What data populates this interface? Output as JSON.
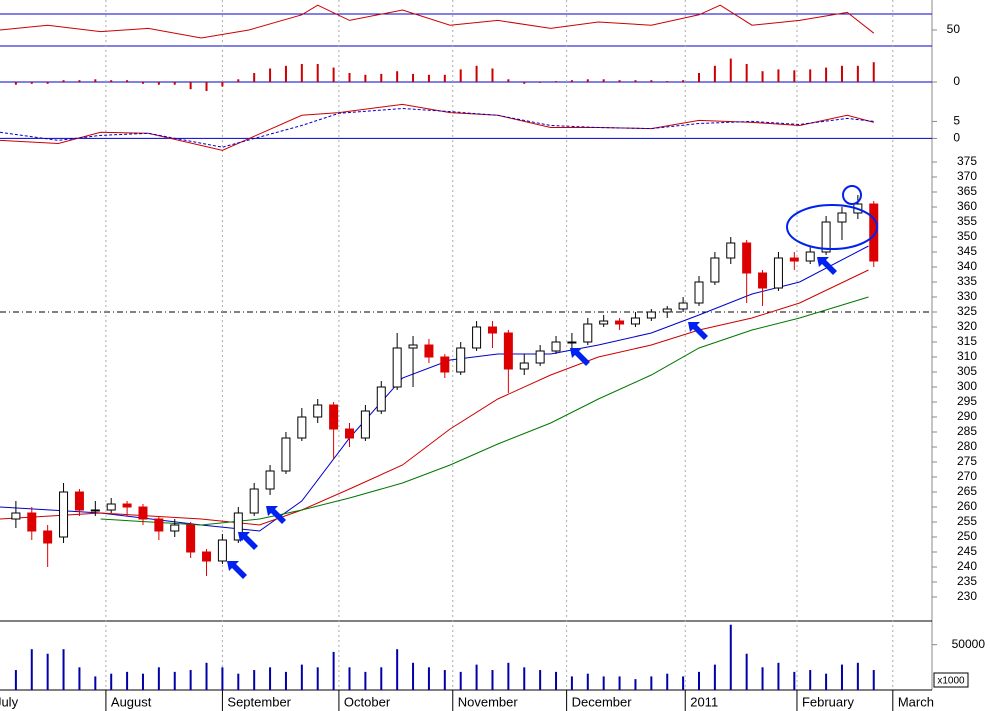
{
  "chart_data": [
    {
      "type": "line",
      "xlim": [
        -2,
        174
      ],
      "ylim": [
        30,
        85
      ],
      "yticks": [
        50
      ],
      "hlines": [
        70,
        30
      ],
      "series": [
        {
          "color": "#cc0000",
          "x": [
            -2,
            7,
            17,
            26,
            36,
            45,
            55,
            58,
            64,
            74,
            83,
            92,
            102,
            111,
            121,
            130,
            134,
            140,
            149,
            158,
            163
          ],
          "values": [
            50,
            56,
            48,
            52,
            40,
            50,
            69,
            81,
            62,
            75,
            56,
            62,
            52,
            60,
            56,
            69,
            81,
            56,
            62,
            72,
            46
          ]
        }
      ]
    },
    {
      "type": "bar",
      "xlim": [
        -2,
        174
      ],
      "ylim": [
        -20,
        40
      ],
      "yticks": [
        0
      ],
      "color": "#cc0000",
      "x": [
        1,
        4,
        7,
        10,
        13,
        16,
        19,
        22,
        25,
        28,
        31,
        34,
        37,
        40,
        43,
        46,
        49,
        52,
        55,
        58,
        61,
        64,
        67,
        70,
        73,
        76,
        79,
        82,
        85,
        88,
        91,
        94,
        97,
        100,
        103,
        106,
        109,
        112,
        115,
        118,
        121,
        124,
        127,
        130,
        133,
        136,
        139,
        142,
        145,
        148,
        151,
        154,
        157,
        160,
        163
      ],
      "values": [
        -3,
        -2,
        -2,
        2,
        2,
        3,
        2,
        2,
        -2,
        -3,
        -3,
        -8,
        -10,
        -5,
        3,
        10,
        15,
        18,
        20,
        20,
        16,
        10,
        8,
        9,
        12,
        9,
        8,
        8,
        14,
        18,
        15,
        3,
        -2,
        -1,
        1,
        2,
        3,
        3,
        2,
        2,
        2,
        1,
        2,
        10,
        18,
        26,
        20,
        12,
        14,
        13,
        14,
        16,
        18,
        18,
        22
      ]
    },
    {
      "type": "line",
      "xlim": [
        -2,
        174
      ],
      "ylim": [
        -4,
        11.6
      ],
      "yticks": [
        0,
        5
      ],
      "series": [
        {
          "color": "#cc0000",
          "x": [
            -2,
            9,
            17,
            26,
            40,
            55,
            62,
            74,
            83,
            92,
            102,
            111,
            121,
            130,
            140,
            149,
            158,
            163
          ],
          "values": [
            -0.6,
            -1.5,
            1.8,
            1.5,
            -3.5,
            6.8,
            7.6,
            10,
            7.6,
            6.8,
            3.2,
            3.2,
            2.9,
            5.3,
            4.7,
            3.8,
            6.8,
            4.7
          ]
        },
        {
          "color": "#0000cc",
          "dash": true,
          "x": [
            -2,
            9,
            17,
            26,
            40,
            55,
            62,
            74,
            83,
            92,
            102,
            111,
            121,
            130,
            140,
            149,
            158,
            163
          ],
          "values": [
            1.8,
            -0.6,
            0.9,
            1.5,
            -2.6,
            3.8,
            7.4,
            8.8,
            7.9,
            6.8,
            3.8,
            3.2,
            2.9,
            4.4,
            5,
            4.1,
            5.9,
            5
          ]
        }
      ]
    },
    {
      "type": "candlestick",
      "xlim": [
        -2,
        174
      ],
      "ylim": [
        222,
        379
      ],
      "yticks": [
        230,
        235,
        240,
        245,
        250,
        255,
        260,
        265,
        270,
        275,
        280,
        285,
        290,
        295,
        300,
        305,
        310,
        315,
        320,
        325,
        330,
        335,
        340,
        345,
        350,
        355,
        360,
        365,
        370,
        375
      ],
      "hline": 325,
      "up_color": "#ffffff",
      "down_color": "#dd0000",
      "x": [
        1,
        4,
        7,
        10,
        13,
        16,
        19,
        22,
        25,
        28,
        31,
        34,
        37,
        40,
        43,
        46,
        49,
        52,
        55,
        58,
        61,
        64,
        67,
        70,
        73,
        76,
        79,
        82,
        85,
        88,
        91,
        94,
        97,
        100,
        103,
        106,
        109,
        112,
        115,
        118,
        121,
        124,
        127,
        130,
        133,
        136,
        139,
        142,
        145,
        148,
        151,
        154,
        157,
        160,
        163
      ],
      "ohlc": [
        [
          256,
          262,
          253,
          258
        ],
        [
          258,
          260,
          249,
          252
        ],
        [
          252,
          254,
          240,
          248
        ],
        [
          250,
          268,
          248,
          265
        ],
        [
          265,
          266,
          257,
          259
        ],
        [
          259,
          262,
          257,
          259
        ],
        [
          259,
          263,
          258,
          261
        ],
        [
          261,
          262,
          257,
          260
        ],
        [
          260,
          261,
          254,
          256
        ],
        [
          256,
          257,
          249,
          252
        ],
        [
          252,
          256,
          250,
          254
        ],
        [
          254,
          255,
          243,
          245
        ],
        [
          245,
          246,
          237,
          242
        ],
        [
          242,
          251,
          241,
          249
        ],
        [
          249,
          260,
          248,
          258
        ],
        [
          258,
          268,
          257,
          266
        ],
        [
          266,
          274,
          264,
          272
        ],
        [
          272,
          285,
          271,
          283
        ],
        [
          283,
          293,
          282,
          290
        ],
        [
          290,
          296,
          288,
          294
        ],
        [
          294,
          295,
          276,
          286
        ],
        [
          286,
          288,
          280,
          283
        ],
        [
          283,
          294,
          282,
          292
        ],
        [
          292,
          302,
          291,
          300
        ],
        [
          300,
          318,
          299,
          313
        ],
        [
          313,
          317,
          300,
          314
        ],
        [
          314,
          316,
          308,
          310
        ],
        [
          310,
          311,
          303,
          305
        ],
        [
          305,
          315,
          304,
          313
        ],
        [
          313,
          322,
          312,
          320
        ],
        [
          320,
          322,
          313,
          318
        ],
        [
          318,
          319,
          298,
          306
        ],
        [
          306,
          311,
          304,
          308
        ],
        [
          308,
          314,
          307,
          312
        ],
        [
          312,
          317,
          311,
          315
        ],
        [
          315,
          318,
          313,
          315
        ],
        [
          315,
          323,
          314,
          321
        ],
        [
          321,
          324,
          320,
          322
        ],
        [
          322,
          323,
          319,
          321
        ],
        [
          321,
          325,
          320,
          323
        ],
        [
          323,
          326,
          322,
          325
        ],
        [
          325,
          327,
          323,
          326
        ],
        [
          326,
          330,
          325,
          328
        ],
        [
          328,
          337,
          327,
          335
        ],
        [
          335,
          345,
          334,
          343
        ],
        [
          343,
          350,
          341,
          348
        ],
        [
          348,
          349,
          328,
          338
        ],
        [
          338,
          339,
          327,
          333
        ],
        [
          333,
          345,
          332,
          343
        ],
        [
          343,
          345,
          339,
          342
        ],
        [
          342,
          347,
          341,
          345
        ],
        [
          345,
          357,
          344,
          355
        ],
        [
          355,
          360,
          349,
          358
        ],
        [
          358,
          364,
          356,
          361
        ],
        [
          361,
          362,
          340,
          342
        ]
      ],
      "series": [
        {
          "color": "#0000cc",
          "x": [
            -2,
            17,
            36,
            47,
            55,
            64,
            74,
            83,
            92,
            102,
            111,
            121,
            130,
            140,
            149,
            162
          ],
          "values": [
            260,
            258,
            254,
            252,
            262,
            283,
            303,
            309,
            311,
            311,
            314,
            318,
            324,
            331,
            335,
            347
          ]
        },
        {
          "color": "#cc0000",
          "x": [
            -2,
            17,
            36,
            47,
            55,
            64,
            74,
            83,
            92,
            102,
            111,
            121,
            130,
            140,
            149,
            162
          ],
          "values": [
            256,
            258,
            256,
            254,
            259,
            266,
            274,
            286,
            296,
            304,
            310,
            314,
            319,
            323,
            328,
            339
          ]
        },
        {
          "color": "#007700",
          "x": [
            -2,
            17,
            36,
            47,
            55,
            64,
            74,
            83,
            92,
            102,
            111,
            121,
            130,
            140,
            149,
            162
          ],
          "values": [
            null,
            256,
            254,
            256,
            259,
            263,
            268,
            274,
            281,
            288,
            296,
            304,
            313,
            319,
            323,
            330
          ]
        }
      ]
    },
    {
      "type": "bar",
      "xlim": [
        -2,
        174
      ],
      "ylim": [
        0,
        75000
      ],
      "yticks": [
        50000
      ],
      "unit_label": "x1000",
      "color": "#0000aa",
      "x": [
        1,
        4,
        7,
        10,
        13,
        16,
        19,
        22,
        25,
        28,
        31,
        34,
        37,
        40,
        43,
        46,
        49,
        52,
        55,
        58,
        61,
        64,
        67,
        70,
        73,
        76,
        79,
        82,
        85,
        88,
        91,
        94,
        97,
        100,
        103,
        106,
        109,
        112,
        115,
        118,
        121,
        124,
        127,
        130,
        133,
        136,
        139,
        142,
        145,
        148,
        151,
        154,
        157,
        160,
        163
      ],
      "values": [
        22000,
        45000,
        40000,
        45000,
        25000,
        15000,
        18000,
        20000,
        18000,
        25000,
        20000,
        22000,
        30000,
        25000,
        18000,
        22000,
        25000,
        20000,
        28000,
        25000,
        42000,
        25000,
        20000,
        25000,
        45000,
        30000,
        25000,
        22000,
        20000,
        28000,
        22000,
        30000,
        25000,
        22000,
        20000,
        15000,
        18000,
        15000,
        15000,
        12000,
        15000,
        18000,
        15000,
        20000,
        28000,
        72000,
        40000,
        25000,
        30000,
        20000,
        22000,
        18000,
        28000,
        30000,
        22000
      ],
      "xticks": [
        {
          "value": -3.9,
          "label": "July"
        },
        {
          "value": 18,
          "label": "August"
        },
        {
          "value": 40,
          "label": "September"
        },
        {
          "value": 62,
          "label": "October"
        },
        {
          "value": 83.5,
          "label": "November"
        },
        {
          "value": 105,
          "label": "December"
        },
        {
          "value": 127.4,
          "label": "2011"
        },
        {
          "value": 148.5,
          "label": "February"
        },
        {
          "value": 166.6,
          "label": "March"
        }
      ]
    }
  ]
}
